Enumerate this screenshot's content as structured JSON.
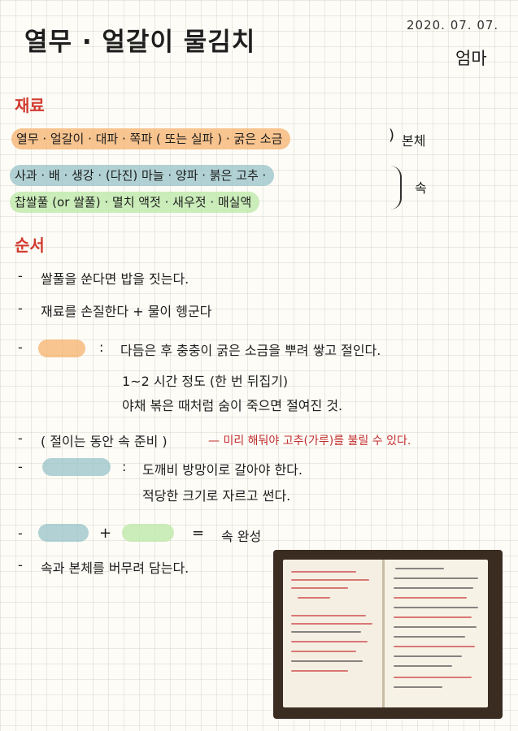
{
  "title": "열무 · 얼갈이 물김치",
  "date": "2020. 07. 07.",
  "author": "엄마",
  "sections": {
    "ingredients": "재료",
    "order": "순서"
  },
  "ingredients": {
    "main_line": "열무 · 얼갈이 · 대파 · 쪽파 ( 또는 실파 ) · 굵은 소금",
    "main_label": "본체",
    "filling_line1": "사과 · 배 · 생강 · (다진) 마늘 · 양파 · 붉은 고추 ·",
    "filling_line2": "찹쌀풀 (or 쌀풀) · 멸치 액젓 · 새우젓 · 매실액",
    "filling_label": "속"
  },
  "steps": {
    "s1": "쌀풀을 쑨다면 밥을 짓는다.",
    "s2": "재료를 손질한다 + 물이 헹군다",
    "s3_colon": ":",
    "s3_line1": "다듬은 후 충충이 굵은 소금을 뿌려 쌓고 절인다.",
    "s3_line2": "1~2 시간 정도 (한 번 뒤집기)",
    "s3_line3": "야채 볶은 때처럼 숨이 죽으면 절여진 것.",
    "s4": "( 절이는 동안 속 준비 )",
    "s4_note": "— 미리 해둬야 고추(가루)를 불릴 수 있다.",
    "s5_colon": ":",
    "s5_line1": "도깨비 방망이로 갈아야 한다.",
    "s5_line2": "적당한 크기로 자르고 썬다.",
    "s6_plus": "+",
    "s6_eq": "=",
    "s6_result": "속 완성",
    "s7": "속과 본체를 버무려 담는다."
  },
  "bullet": "-",
  "colors": {
    "accent_red": "#d23b2f",
    "highlight_orange": "#f6b26c",
    "highlight_blue": "#97c3c8",
    "highlight_green": "#bee8aa"
  }
}
